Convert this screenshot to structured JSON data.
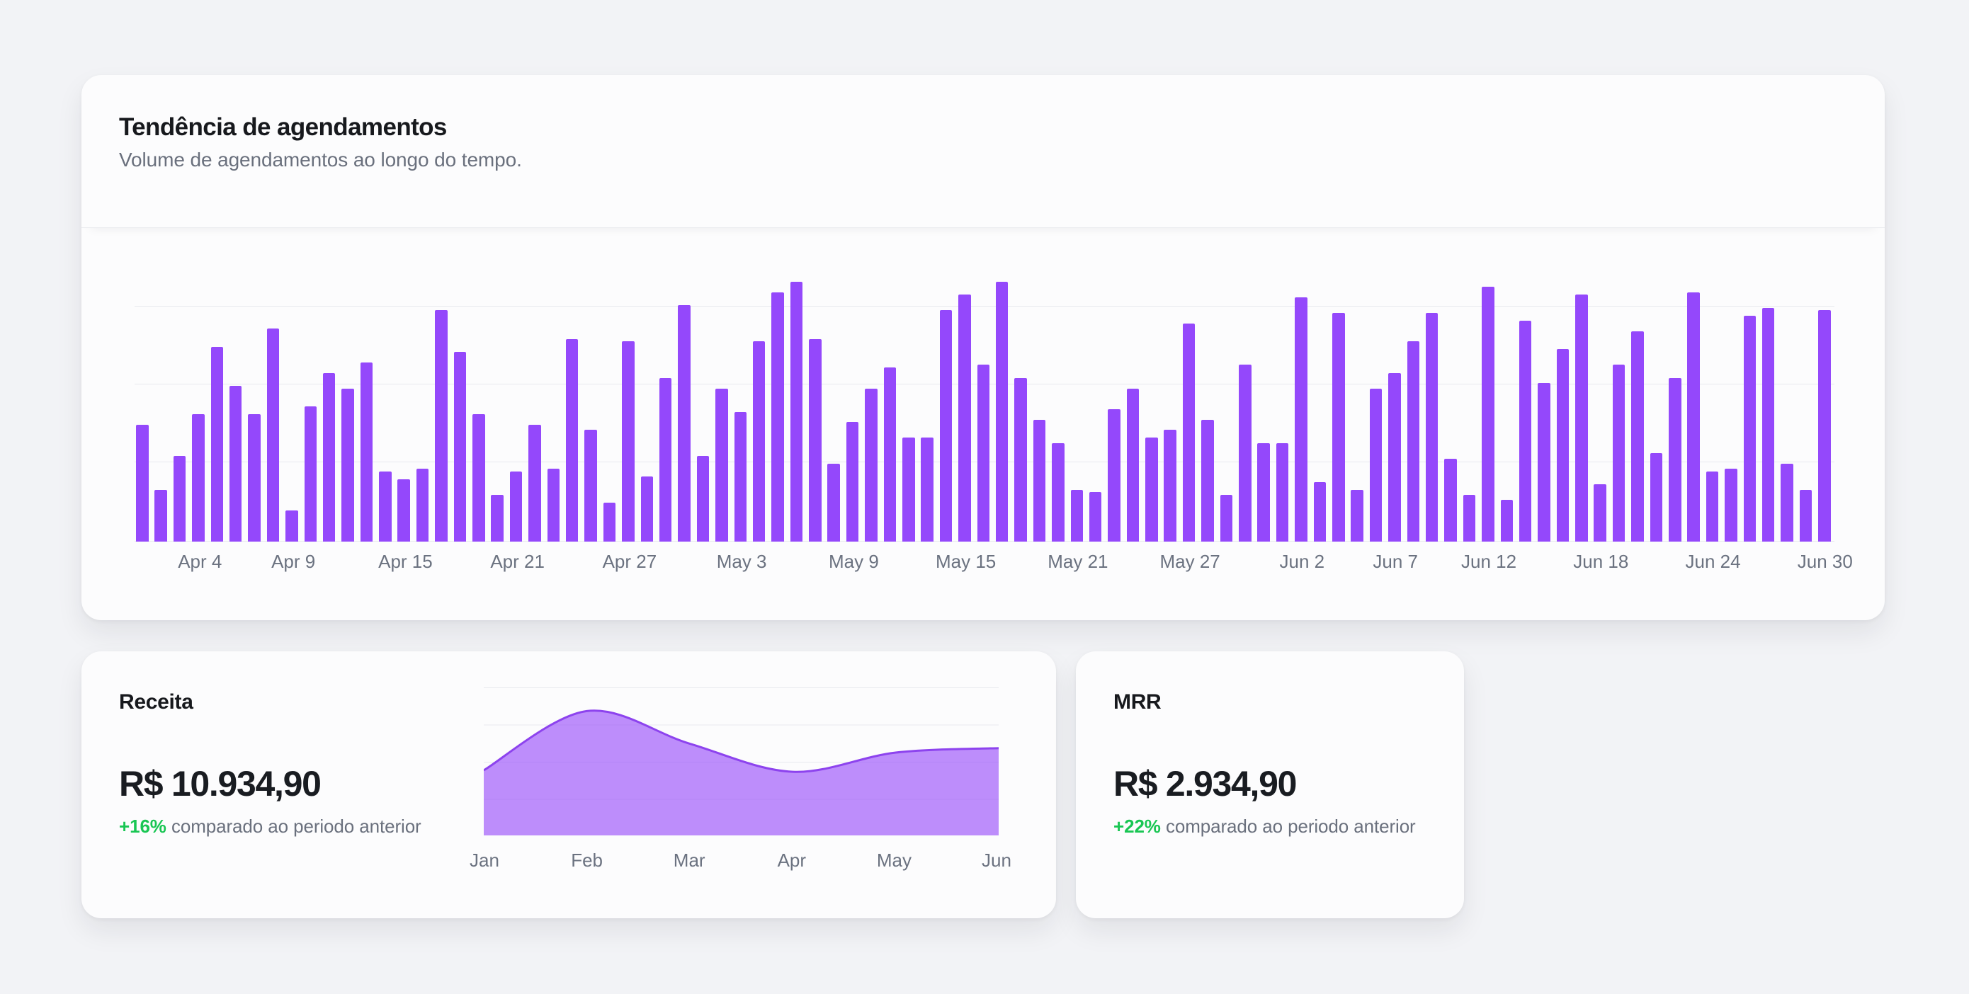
{
  "trend_card": {
    "title": "Tendência de agendamentos",
    "subtitle": "Volume de agendamentos ao longo do tempo."
  },
  "receita_card": {
    "title": "Receita",
    "value": "R$ 10.934,90",
    "delta": "+16%",
    "delta_suffix": " comparado ao periodo anterior"
  },
  "mrr_card": {
    "title": "MRR",
    "value": "R$ 2.934,90",
    "delta": "+22%",
    "delta_suffix": " comparado ao periodo anterior"
  },
  "colors": {
    "bar_purple": "#9448fb",
    "area_fill": "rgba(150,72,250,0.62)",
    "area_stroke": "#8d43ee",
    "positive_green": "#19c653",
    "gridline": "#e8e9ee"
  },
  "chart_data": [
    {
      "type": "bar",
      "title": "Tendência de agendamentos",
      "x_unit": "day",
      "x_start": "Apr 1",
      "x_end": "Jun 30",
      "values": [
        45,
        20,
        33,
        49,
        75,
        60,
        49,
        82,
        12,
        52,
        65,
        59,
        69,
        27,
        24,
        28,
        89,
        73,
        49,
        18,
        27,
        45,
        28,
        78,
        43,
        15,
        77,
        25,
        63,
        91,
        33,
        59,
        50,
        77,
        96,
        100,
        78,
        30,
        46,
        59,
        67,
        40,
        40,
        89,
        95,
        68,
        100,
        63,
        47,
        38,
        20,
        19,
        51,
        59,
        40,
        43,
        84,
        47,
        18,
        68,
        38,
        38,
        94,
        23,
        88,
        20,
        59,
        65,
        77,
        88,
        32,
        18,
        98,
        16,
        85,
        61,
        74,
        95,
        22,
        68,
        81,
        34,
        63,
        96,
        27,
        28,
        87,
        90,
        30,
        20,
        89
      ],
      "tick_labels": [
        {
          "index": 3,
          "label": "Apr 4"
        },
        {
          "index": 8,
          "label": "Apr 9"
        },
        {
          "index": 14,
          "label": "Apr 15"
        },
        {
          "index": 20,
          "label": "Apr 21"
        },
        {
          "index": 26,
          "label": "Apr 27"
        },
        {
          "index": 32,
          "label": "May 3"
        },
        {
          "index": 38,
          "label": "May 9"
        },
        {
          "index": 44,
          "label": "May 15"
        },
        {
          "index": 50,
          "label": "May 21"
        },
        {
          "index": 56,
          "label": "May 27"
        },
        {
          "index": 62,
          "label": "Jun 2"
        },
        {
          "index": 67,
          "label": "Jun 7"
        },
        {
          "index": 72,
          "label": "Jun 12"
        },
        {
          "index": 78,
          "label": "Jun 18"
        },
        {
          "index": 84,
          "label": "Jun 24"
        },
        {
          "index": 90,
          "label": "Jun 30"
        }
      ],
      "ylim": [
        0,
        100
      ],
      "gridline_values": [
        0,
        30,
        60,
        90
      ],
      "y_axis_labels": false,
      "legend": false
    },
    {
      "type": "area",
      "title": "Receita",
      "categories": [
        "Jan",
        "Feb",
        "Mar",
        "Apr",
        "May",
        "Jun"
      ],
      "values": [
        44,
        84,
        62,
        43,
        56,
        59
      ],
      "ylim": [
        0,
        100
      ],
      "grid": true,
      "legend": false
    }
  ]
}
